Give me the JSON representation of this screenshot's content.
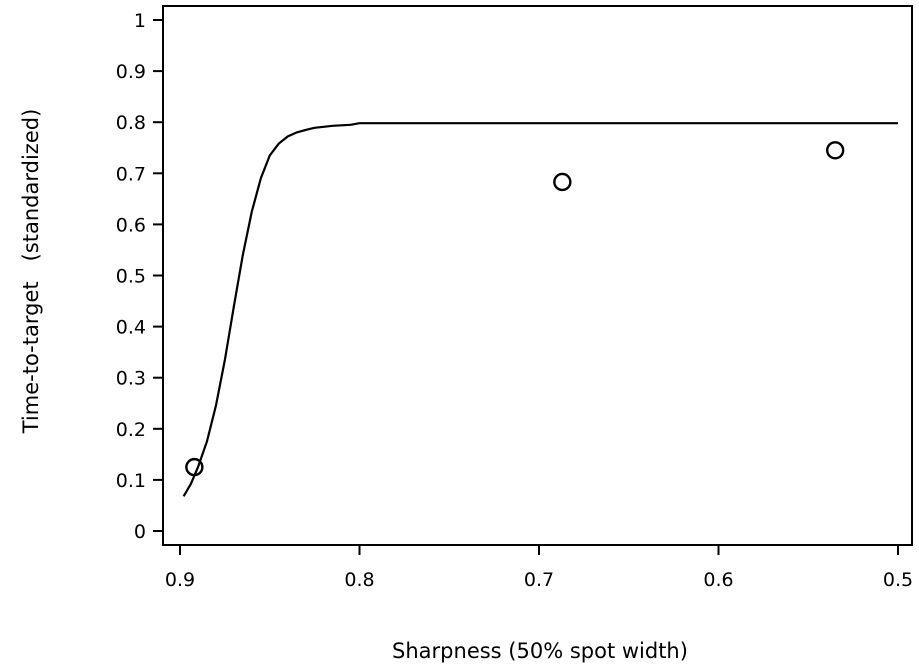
{
  "chart_data": {
    "type": "scatter",
    "xlabel": "Sharpness (50% spot width)",
    "ylabel": "Time-to-target   (standardized)",
    "xlim": [
      0.9,
      0.5
    ],
    "ylim": [
      0,
      1
    ],
    "x_reversed": true,
    "grid": false,
    "x_ticks": [
      {
        "value": 0.9,
        "label": "0.9"
      },
      {
        "value": 0.8,
        "label": "0.8"
      },
      {
        "value": 0.7,
        "label": "0.7"
      },
      {
        "value": 0.6,
        "label": "0.6"
      },
      {
        "value": 0.5,
        "label": "0.5"
      }
    ],
    "y_ticks": [
      {
        "value": 0,
        "label": "0"
      },
      {
        "value": 0.1,
        "label": "0.1"
      },
      {
        "value": 0.2,
        "label": "0.2"
      },
      {
        "value": 0.3,
        "label": "0.3"
      },
      {
        "value": 0.4,
        "label": "0.4"
      },
      {
        "value": 0.5,
        "label": "0.5"
      },
      {
        "value": 0.6,
        "label": "0.6"
      },
      {
        "value": 0.7,
        "label": "0.7"
      },
      {
        "value": 0.8,
        "label": "0.8"
      },
      {
        "value": 0.9,
        "label": "0.9"
      },
      {
        "value": 1,
        "label": "1"
      }
    ],
    "points": [
      {
        "x": 0.892,
        "y": 0.125
      },
      {
        "x": 0.687,
        "y": 0.683
      },
      {
        "x": 0.535,
        "y": 0.745
      }
    ],
    "curve": [
      {
        "x": 0.898,
        "y": 0.068
      },
      {
        "x": 0.894,
        "y": 0.092
      },
      {
        "x": 0.89,
        "y": 0.125
      },
      {
        "x": 0.885,
        "y": 0.175
      },
      {
        "x": 0.88,
        "y": 0.245
      },
      {
        "x": 0.875,
        "y": 0.335
      },
      {
        "x": 0.87,
        "y": 0.44
      },
      {
        "x": 0.865,
        "y": 0.54
      },
      {
        "x": 0.86,
        "y": 0.625
      },
      {
        "x": 0.855,
        "y": 0.69
      },
      {
        "x": 0.85,
        "y": 0.735
      },
      {
        "x": 0.845,
        "y": 0.758
      },
      {
        "x": 0.84,
        "y": 0.772
      },
      {
        "x": 0.835,
        "y": 0.78
      },
      {
        "x": 0.83,
        "y": 0.785
      },
      {
        "x": 0.825,
        "y": 0.789
      },
      {
        "x": 0.815,
        "y": 0.793
      },
      {
        "x": 0.805,
        "y": 0.795
      },
      {
        "x": 0.8,
        "y": 0.798
      },
      {
        "x": 0.7,
        "y": 0.798
      },
      {
        "x": 0.6,
        "y": 0.798
      },
      {
        "x": 0.5,
        "y": 0.798
      }
    ]
  }
}
